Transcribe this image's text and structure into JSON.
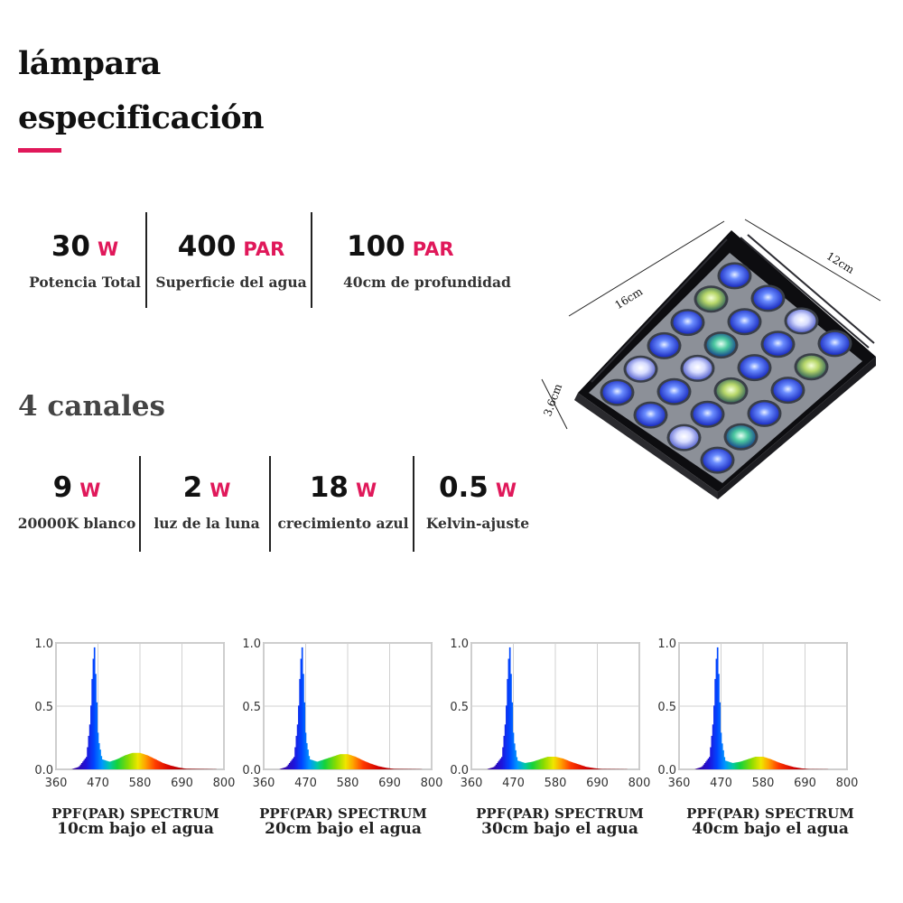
{
  "header": {
    "title_line1": "lámpara",
    "title_line2": "especificación",
    "accent_color": "#e0185a"
  },
  "specs": [
    {
      "value": "30",
      "unit": "W",
      "label": "Potencia Total"
    },
    {
      "value": "400",
      "unit": "PAR",
      "label": "Superficie del agua"
    },
    {
      "value": "100",
      "unit": "PAR",
      "label": "40cm de profundidad"
    }
  ],
  "channels_title": "4 canales",
  "channels": [
    {
      "value": "9",
      "unit": "W",
      "label": "20000K blanco"
    },
    {
      "value": "2",
      "unit": "W",
      "label": "luz de la luna"
    },
    {
      "value": "18",
      "unit": "W",
      "label": "crecimiento azul"
    },
    {
      "value": "0.5",
      "unit": "W",
      "label": "Kelvin-ajuste"
    }
  ],
  "lamp": {
    "dim_length": "16cm",
    "dim_width": "12cm",
    "dim_height": "3.6cm"
  },
  "chart_data": [
    {
      "type": "area",
      "title": "PPF(PAR) SPECTRUM",
      "subtitle": "10cm bajo el agua",
      "xticks": [
        "360",
        "470",
        "580",
        "690",
        "800"
      ],
      "yticks": [
        "0.0",
        "0.5",
        "1.0"
      ],
      "xlim": [
        360,
        800
      ],
      "ylim": [
        0,
        1
      ],
      "grid": true,
      "x": [
        360,
        400,
        420,
        440,
        450,
        455,
        460,
        465,
        470,
        480,
        500,
        520,
        540,
        560,
        580,
        600,
        620,
        640,
        660,
        680,
        700,
        800
      ],
      "y": [
        0,
        0,
        0.02,
        0.1,
        0.4,
        0.75,
        1.0,
        0.65,
        0.25,
        0.08,
        0.06,
        0.08,
        0.11,
        0.13,
        0.13,
        0.11,
        0.08,
        0.05,
        0.03,
        0.015,
        0.005,
        0
      ]
    },
    {
      "type": "area",
      "title": "PPF(PAR) SPECTRUM",
      "subtitle": "20cm bajo el agua",
      "xticks": [
        "360",
        "470",
        "580",
        "690",
        "800"
      ],
      "yticks": [
        "0.0",
        "0.5",
        "1.0"
      ],
      "xlim": [
        360,
        800
      ],
      "ylim": [
        0,
        1
      ],
      "grid": true,
      "x": [
        360,
        400,
        420,
        440,
        450,
        455,
        460,
        465,
        470,
        480,
        500,
        520,
        540,
        560,
        580,
        600,
        620,
        640,
        660,
        680,
        700,
        800
      ],
      "y": [
        0,
        0,
        0.02,
        0.1,
        0.4,
        0.75,
        1.0,
        0.65,
        0.25,
        0.08,
        0.06,
        0.08,
        0.1,
        0.12,
        0.12,
        0.1,
        0.07,
        0.045,
        0.025,
        0.012,
        0.004,
        0
      ]
    },
    {
      "type": "area",
      "title": "PPF(PAR) SPECTRUM",
      "subtitle": "30cm bajo el agua",
      "xticks": [
        "360",
        "470",
        "580",
        "690",
        "800"
      ],
      "yticks": [
        "0.0",
        "0.5",
        "1.0"
      ],
      "xlim": [
        360,
        800
      ],
      "ylim": [
        0,
        1
      ],
      "grid": true,
      "x": [
        360,
        400,
        420,
        440,
        450,
        455,
        460,
        465,
        470,
        480,
        500,
        520,
        540,
        560,
        580,
        600,
        620,
        640,
        660,
        680,
        700,
        800
      ],
      "y": [
        0,
        0,
        0.02,
        0.1,
        0.4,
        0.75,
        1.0,
        0.65,
        0.25,
        0.07,
        0.05,
        0.06,
        0.08,
        0.1,
        0.1,
        0.085,
        0.06,
        0.04,
        0.02,
        0.01,
        0.003,
        0
      ]
    },
    {
      "type": "area",
      "title": "PPF(PAR) SPECTRUM",
      "subtitle": "40cm bajo el agua",
      "xticks": [
        "360",
        "470",
        "580",
        "690",
        "800"
      ],
      "yticks": [
        "0.0",
        "0.5",
        "1.0"
      ],
      "xlim": [
        360,
        800
      ],
      "ylim": [
        0,
        1
      ],
      "grid": true,
      "x": [
        360,
        400,
        420,
        440,
        450,
        455,
        460,
        465,
        470,
        480,
        500,
        520,
        540,
        560,
        580,
        600,
        620,
        640,
        660,
        680,
        700,
        800
      ],
      "y": [
        0,
        0,
        0.02,
        0.1,
        0.4,
        0.75,
        1.0,
        0.65,
        0.25,
        0.07,
        0.05,
        0.06,
        0.08,
        0.1,
        0.1,
        0.08,
        0.055,
        0.035,
        0.018,
        0.008,
        0.002,
        0
      ]
    }
  ]
}
